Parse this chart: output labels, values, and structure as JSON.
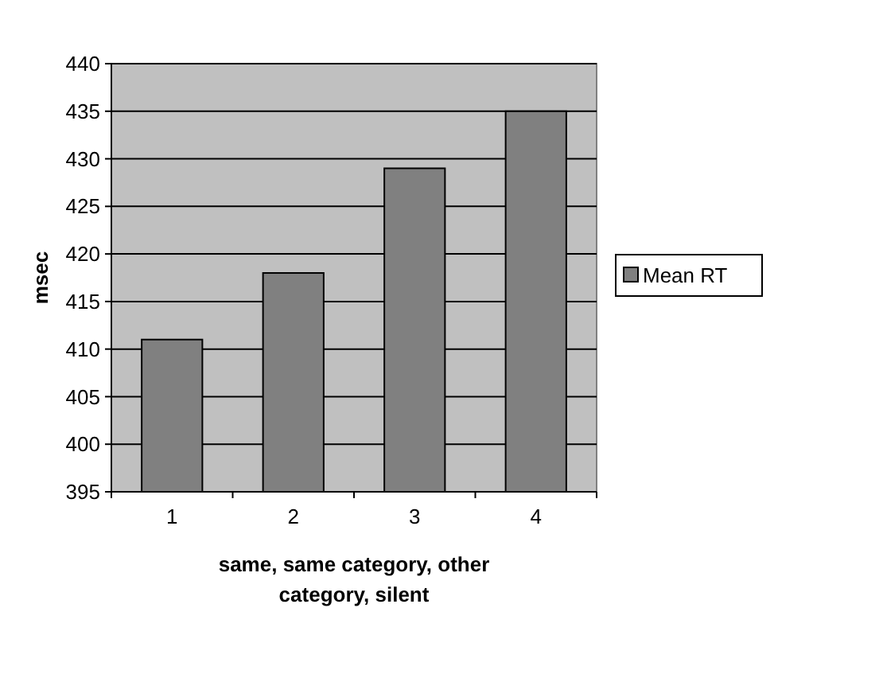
{
  "chart_data": {
    "type": "bar",
    "categories": [
      "1",
      "2",
      "3",
      "4"
    ],
    "series": [
      {
        "name": "Mean RT",
        "color": "#808080",
        "values": [
          411,
          418,
          429,
          435
        ]
      }
    ],
    "xlabel": "same, same category, other category, silent",
    "ylabel": "msec",
    "ylim": [
      395,
      440
    ],
    "yticks": [
      395,
      400,
      405,
      410,
      415,
      420,
      425,
      430,
      435,
      440
    ],
    "grid": "y",
    "legend": "right"
  }
}
